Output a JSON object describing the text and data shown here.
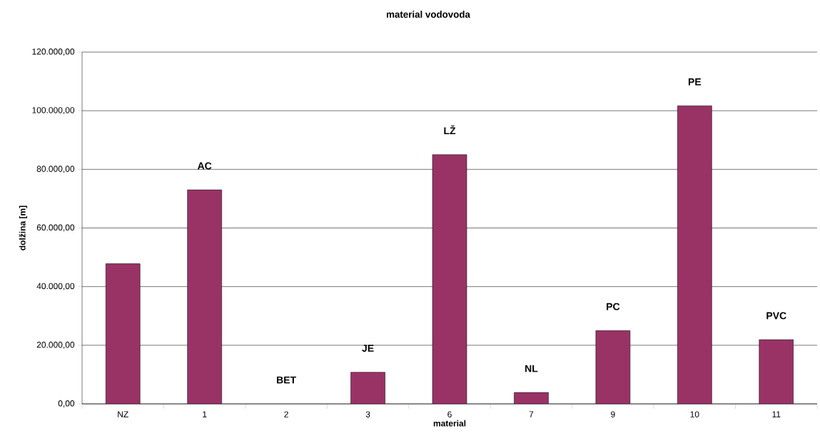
{
  "chart_data": {
    "type": "bar",
    "title": "material vodovoda",
    "xlabel": "material",
    "ylabel": "dolžina [m]",
    "categories": [
      "NZ",
      "1",
      "2",
      "3",
      "6",
      "7",
      "9",
      "10",
      "11"
    ],
    "values": [
      47800,
      73000,
      null,
      10800,
      85000,
      3900,
      25000,
      101700,
      21900
    ],
    "color": "#993366",
    "ylim": [
      0,
      120000
    ],
    "yticks": [
      {
        "value": 0,
        "label": "0,00"
      },
      {
        "value": 20000,
        "label": "20.000,00"
      },
      {
        "value": 40000,
        "label": "40.000,00"
      },
      {
        "value": 60000,
        "label": "60.000,00"
      },
      {
        "value": 80000,
        "label": "80.000,00"
      },
      {
        "value": 100000,
        "label": "100.000,00"
      },
      {
        "value": 120000,
        "label": "120.000,00"
      }
    ],
    "grid": "y",
    "annotations": [
      "AC",
      "BET",
      "JE",
      "LŽ",
      "NL",
      "PC",
      "PE",
      "PVC"
    ]
  }
}
